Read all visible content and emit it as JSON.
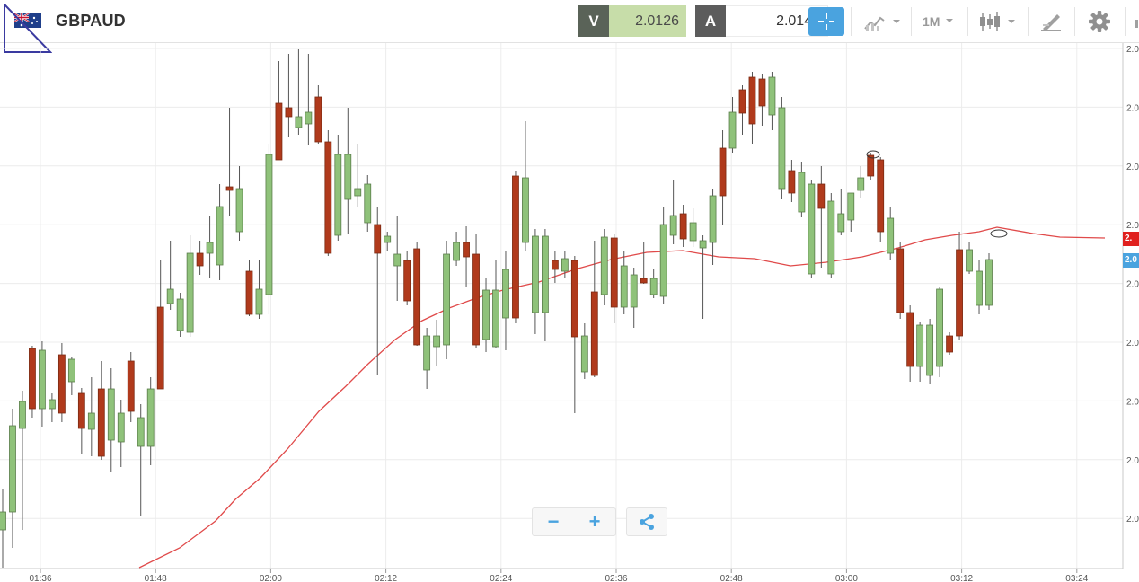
{
  "header": {
    "symbol": "GBPAUD",
    "flag_icon": "gb-au-flag-icon"
  },
  "quotes": {
    "sell": {
      "tag": "V",
      "value": "2.0126"
    },
    "buy": {
      "tag": "A",
      "value": "2.0140"
    }
  },
  "toolbar": {
    "crosshair_icon": "crosshair-icon",
    "indicators_icon": "indicators-icon",
    "timeframe": "1M",
    "chart_type_icon": "candlestick-icon",
    "draw_icon": "draw-tools-icon",
    "settings_icon": "gear-icon"
  },
  "colors": {
    "up": "#8fc27a",
    "down": "#b03a1c",
    "ma": "#e04a4a",
    "accent": "#4aa3df"
  },
  "price_axis": {
    "tick_labels": [
      "2.0",
      "2.0",
      "2.0",
      "2.0",
      "2.0",
      "2.0",
      "2.0",
      "2.0",
      "2.0"
    ],
    "sell_flag": "2.",
    "buy_flag": "2.0"
  },
  "chart_data": {
    "type": "candlestick",
    "symbol": "GBPAUD",
    "interval": "1M",
    "x_tick_labels": [
      "01:36",
      "01:48",
      "02:00",
      "02:12",
      "02:24",
      "02:36",
      "02:48",
      "03:00",
      "03:12",
      "03:24"
    ],
    "price_range": [
      2.0065,
      2.0155
    ],
    "current_sell": 2.0126,
    "current_buy": 2.014,
    "grid": true,
    "series": [
      {
        "name": "",
        "type": "moving-average"
      }
    ]
  },
  "controls": {
    "zoom_out": "−",
    "zoom_in": "+",
    "share_icon": "share-icon"
  }
}
